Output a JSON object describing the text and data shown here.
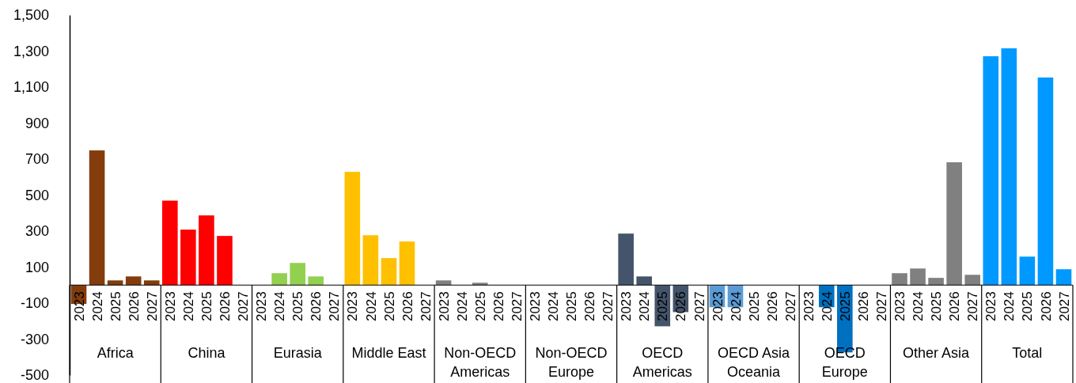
{
  "chart_data": {
    "type": "bar",
    "categories": [
      "Africa",
      "China",
      "Eurasia",
      "Middle East",
      "Non-OECD Americas",
      "Non-OECD Europe",
      "OECD Americas",
      "OECD Asia Oceania",
      "OECD Europe",
      "Other Asia",
      "Total"
    ],
    "series": [
      {
        "name": "2023",
        "colors": [
          "#843c0c",
          "#ff0000",
          "#92d050",
          "#ffc000",
          "#808080",
          "#808080",
          "#44546a",
          "#5b9bd5",
          "#0070c0",
          "#808080",
          "#0099ff"
        ],
        "values": [
          -105,
          469,
          0,
          629,
          26,
          0,
          286,
          -123,
          0,
          66,
          1271
        ]
      },
      {
        "name": "2024",
        "colors": [
          "#843c0c",
          "#ff0000",
          "#92d050",
          "#ffc000",
          "#808080",
          "#808080",
          "#44546a",
          "#5b9bd5",
          "#0070c0",
          "#808080",
          "#0099ff"
        ],
        "values": [
          748,
          308,
          66,
          277,
          0,
          0,
          48,
          -123,
          -123,
          92,
          1315
        ]
      },
      {
        "name": "2025",
        "colors": [
          "#843c0c",
          "#ff0000",
          "#92d050",
          "#ffc000",
          "#808080",
          "#808080",
          "#44546a",
          "#5b9bd5",
          "#0070c0",
          "#808080",
          "#0099ff"
        ],
        "values": [
          26,
          387,
          123,
          150,
          13,
          0,
          -229,
          0,
          -374,
          40,
          158
        ]
      },
      {
        "name": "2026",
        "colors": [
          "#843c0c",
          "#ff0000",
          "#92d050",
          "#ffc000",
          "#808080",
          "#808080",
          "#44546a",
          "#5b9bd5",
          "#0070c0",
          "#808080",
          "#0099ff"
        ],
        "values": [
          48,
          273,
          48,
          242,
          0,
          0,
          -150,
          0,
          0,
          682,
          1153
        ]
      },
      {
        "name": "2027",
        "colors": [
          "#843c0c",
          "#ff0000",
          "#92d050",
          "#ffc000",
          "#808080",
          "#808080",
          "#44546a",
          "#5b9bd5",
          "#0070c0",
          "#808080",
          "#0099ff"
        ],
        "values": [
          26,
          0,
          0,
          0,
          0,
          0,
          0,
          0,
          0,
          57,
          88
        ]
      }
    ],
    "ylim": [
      -500,
      1500
    ],
    "yticks": [
      -500,
      -300,
      -100,
      100,
      300,
      500,
      700,
      900,
      {
        "value": 1100,
        "label": "1,100"
      },
      {
        "value": 1300,
        "label": "1,300"
      },
      {
        "value": 1500,
        "label": "1,500"
      }
    ],
    "grid": false,
    "legend": false
  }
}
